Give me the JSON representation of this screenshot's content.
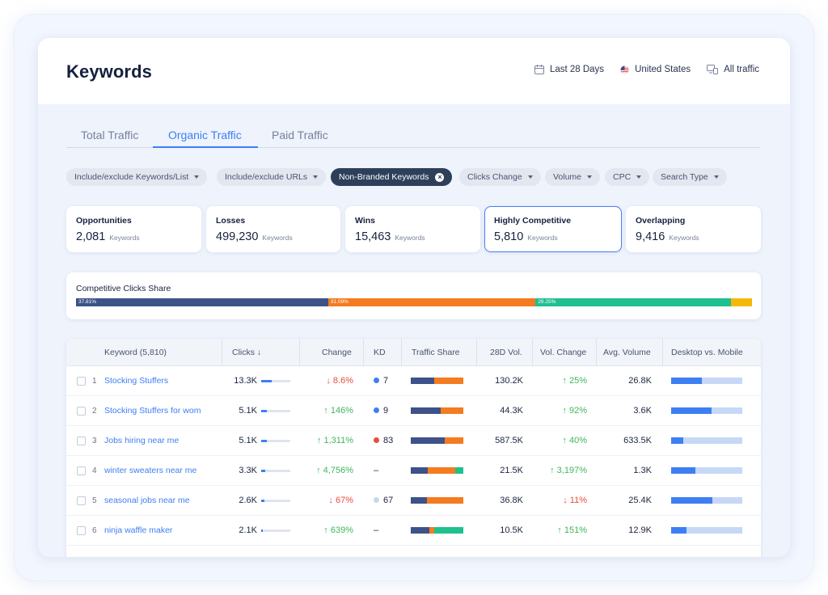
{
  "header": {
    "title": "Keywords",
    "date_range": "Last 28 Days",
    "country": "United States",
    "traffic": "All traffic"
  },
  "tabs": [
    {
      "label": "Total Traffic",
      "active": false
    },
    {
      "label": "Organic Traffic",
      "active": true
    },
    {
      "label": "Paid Traffic",
      "active": false
    }
  ],
  "filters": [
    {
      "label": "Include/exclude Keywords/List"
    },
    {
      "label": "Include/exclude URLs"
    },
    {
      "label": "Non-Branded Keywords",
      "active": true
    },
    {
      "label": "Clicks Change"
    },
    {
      "label": "Volume"
    },
    {
      "label": "CPC"
    },
    {
      "label": "Search Type"
    }
  ],
  "metrics": [
    {
      "label": "Opportunities",
      "value": "2,081",
      "unit": "Keywords"
    },
    {
      "label": "Losses",
      "value": "499,230",
      "unit": "Keywords"
    },
    {
      "label": "Wins",
      "value": "15,463",
      "unit": "Keywords"
    },
    {
      "label": "Highly Competitive",
      "value": "5,810",
      "unit": "Keywords",
      "selected": true
    },
    {
      "label": "Overlapping",
      "value": "9,416",
      "unit": "Keywords"
    }
  ],
  "share": {
    "title": "Competitive Clicks Share",
    "segments": [
      {
        "label": "37.81%",
        "pct": 37.81,
        "color": "#3d5288"
      },
      {
        "label": "31.09%",
        "pct": 31.09,
        "color": "#f47b20"
      },
      {
        "label": "29.25%",
        "pct": 29.25,
        "color": "#20bf8e"
      },
      {
        "label": "",
        "pct": 3.2,
        "color": "#f5b80a"
      }
    ]
  },
  "table": {
    "headers": {
      "keyword": "Keyword (5,810)",
      "clicks": "Clicks ↓",
      "change": "Change",
      "kd": "KD",
      "traffic_share": "Traffic Share",
      "vol28": "28D Vol.",
      "vol_change": "Vol. Change",
      "avg_volume": "Avg. Volume",
      "dvm": "Desktop vs. Mobile"
    },
    "rows": [
      {
        "index": "1",
        "keyword": "Stocking Stuffers",
        "clicks": "13.3K",
        "clicks_pct": 0.35,
        "change": "↓ 8.6%",
        "change_dir": "down",
        "kd": "7",
        "kd_color": "#3d7ff2",
        "share": [
          0.45,
          0.55,
          0
        ],
        "vol28": "130.2K",
        "vol_change": "↑ 25%",
        "vol_dir": "up",
        "avg": "26.8K",
        "desktop": 0.43
      },
      {
        "index": "2",
        "keyword": "Stocking Stuffers for wom",
        "clicks": "5.1K",
        "clicks_pct": 0.2,
        "change": "↑ 146%",
        "change_dir": "up",
        "kd": "9",
        "kd_color": "#3d7ff2",
        "share": [
          0.57,
          0.43,
          0
        ],
        "vol28": "44.3K",
        "vol_change": "↑ 92%",
        "vol_dir": "up",
        "avg": "3.6K",
        "desktop": 0.57
      },
      {
        "index": "3",
        "keyword": "Jobs hiring near me",
        "clicks": "5.1K",
        "clicks_pct": 0.2,
        "change": "↑ 1,311%",
        "change_dir": "up",
        "kd": "83",
        "kd_color": "#e94c3a",
        "share": [
          0.64,
          0.36,
          0
        ],
        "vol28": "587.5K",
        "vol_change": "↑ 40%",
        "vol_dir": "up",
        "avg": "633.5K",
        "desktop": 0.17
      },
      {
        "index": "4",
        "keyword": "winter sweaters near me",
        "clicks": "3.3K",
        "clicks_pct": 0.14,
        "change": "↑ 4,756%",
        "change_dir": "up",
        "kd": "–",
        "kd_color": "",
        "share": [
          0.32,
          0.52,
          0.16
        ],
        "vol28": "21.5K",
        "vol_change": "↑ 3,197%",
        "vol_dir": "up",
        "avg": "1.3K",
        "desktop": 0.34
      },
      {
        "index": "5",
        "keyword": "seasonal jobs near me",
        "clicks": "2.6K",
        "clicks_pct": 0.1,
        "change": "↓ 67%",
        "change_dir": "down",
        "kd": "67",
        "kd_color": "#c9d6ee",
        "share": [
          0.3,
          0.7,
          0
        ],
        "vol28": "36.8K",
        "vol_change": "↓ 11%",
        "vol_dir": "down",
        "avg": "25.4K",
        "desktop": 0.58
      },
      {
        "index": "6",
        "keyword": "ninja waffle maker",
        "clicks": "2.1K",
        "clicks_pct": 0.06,
        "change": "↑ 639%",
        "change_dir": "up",
        "kd": "–",
        "kd_color": "",
        "share": [
          0.36,
          0.08,
          0.56
        ],
        "vol28": "10.5K",
        "vol_change": "↑ 151%",
        "vol_dir": "up",
        "avg": "12.9K",
        "desktop": 0.22
      }
    ]
  },
  "colors": {
    "accent": "#3d7ff2",
    "navy": "#3d5288",
    "orange": "#f47b20",
    "green": "#20bf8e",
    "up": "#3fb65a",
    "down": "#e94c3a"
  }
}
